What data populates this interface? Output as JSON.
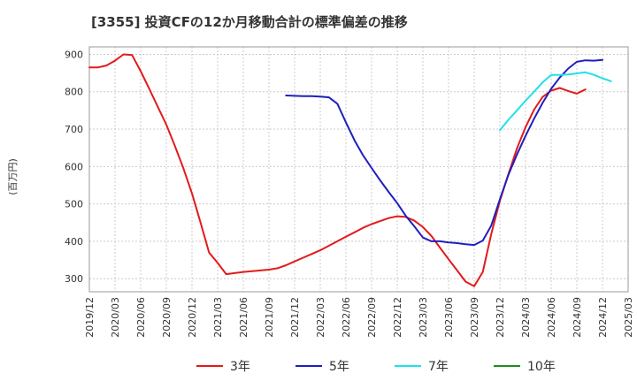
{
  "chart_data": {
    "type": "line",
    "title": "[3355]  投資CFの12か月移動合計の標準偏差の推移",
    "ylabel": "(百万円)",
    "xlabel": "",
    "ylim": [
      265,
      920
    ],
    "yticks": [
      300,
      400,
      500,
      600,
      700,
      800,
      900
    ],
    "xlim": [
      "2019-12",
      "2025-03"
    ],
    "xticks": [
      "2019/12",
      "2020/03",
      "2020/06",
      "2020/09",
      "2020/12",
      "2021/03",
      "2021/06",
      "2021/09",
      "2021/12",
      "2022/03",
      "2022/06",
      "2022/09",
      "2022/12",
      "2023/03",
      "2023/06",
      "2023/09",
      "2023/12",
      "2024/03",
      "2024/06",
      "2024/09",
      "2024/12",
      "2025/03"
    ],
    "grid": true,
    "legend_position": "bottom",
    "series": [
      {
        "name": "3年",
        "color": "#e31a1c",
        "points": [
          [
            "2019-12",
            865
          ],
          [
            "2020-01",
            865
          ],
          [
            "2020-02",
            870
          ],
          [
            "2020-03",
            883
          ],
          [
            "2020-04",
            900
          ],
          [
            "2020-05",
            898
          ],
          [
            "2020-06",
            855
          ],
          [
            "2020-07",
            808
          ],
          [
            "2020-08",
            760
          ],
          [
            "2020-09",
            712
          ],
          [
            "2020-10",
            655
          ],
          [
            "2020-11",
            595
          ],
          [
            "2020-12",
            528
          ],
          [
            "2021-01",
            450
          ],
          [
            "2021-02",
            370
          ],
          [
            "2021-03",
            342
          ],
          [
            "2021-04",
            312
          ],
          [
            "2021-05",
            315
          ],
          [
            "2021-06",
            318
          ],
          [
            "2021-07",
            320
          ],
          [
            "2021-08",
            322
          ],
          [
            "2021-09",
            324
          ],
          [
            "2021-10",
            328
          ],
          [
            "2021-11",
            336
          ],
          [
            "2021-12",
            346
          ],
          [
            "2022-01",
            356
          ],
          [
            "2022-02",
            366
          ],
          [
            "2022-03",
            376
          ],
          [
            "2022-04",
            388
          ],
          [
            "2022-05",
            400
          ],
          [
            "2022-06",
            412
          ],
          [
            "2022-07",
            424
          ],
          [
            "2022-08",
            436
          ],
          [
            "2022-09",
            446
          ],
          [
            "2022-10",
            454
          ],
          [
            "2022-11",
            462
          ],
          [
            "2022-12",
            467
          ],
          [
            "2023-01",
            465
          ],
          [
            "2023-02",
            455
          ],
          [
            "2023-03",
            438
          ],
          [
            "2023-04",
            414
          ],
          [
            "2023-05",
            383
          ],
          [
            "2023-06",
            352
          ],
          [
            "2023-07",
            322
          ],
          [
            "2023-08",
            292
          ],
          [
            "2023-09",
            280
          ],
          [
            "2023-10",
            318
          ],
          [
            "2023-11",
            420
          ],
          [
            "2023-12",
            508
          ],
          [
            "2024-01",
            580
          ],
          [
            "2024-02",
            648
          ],
          [
            "2024-03",
            705
          ],
          [
            "2024-04",
            752
          ],
          [
            "2024-05",
            786
          ],
          [
            "2024-06",
            803
          ],
          [
            "2024-07",
            810
          ],
          [
            "2024-08",
            802
          ],
          [
            "2024-09",
            795
          ],
          [
            "2024-10",
            806
          ]
        ]
      },
      {
        "name": "5年",
        "color": "#1f1fbf",
        "points": [
          [
            "2021-11",
            790
          ],
          [
            "2021-12",
            789
          ],
          [
            "2022-01",
            788
          ],
          [
            "2022-02",
            788
          ],
          [
            "2022-03",
            787
          ],
          [
            "2022-04",
            785
          ],
          [
            "2022-05",
            768
          ],
          [
            "2022-06",
            718
          ],
          [
            "2022-07",
            670
          ],
          [
            "2022-08",
            630
          ],
          [
            "2022-09",
            596
          ],
          [
            "2022-10",
            563
          ],
          [
            "2022-11",
            532
          ],
          [
            "2022-12",
            502
          ],
          [
            "2023-01",
            468
          ],
          [
            "2023-02",
            440
          ],
          [
            "2023-03",
            410
          ],
          [
            "2023-04",
            400
          ],
          [
            "2023-05",
            400
          ],
          [
            "2023-06",
            397
          ],
          [
            "2023-07",
            395
          ],
          [
            "2023-08",
            392
          ],
          [
            "2023-09",
            390
          ],
          [
            "2023-10",
            402
          ],
          [
            "2023-11",
            442
          ],
          [
            "2023-12",
            512
          ],
          [
            "2024-01",
            578
          ],
          [
            "2024-02",
            632
          ],
          [
            "2024-03",
            682
          ],
          [
            "2024-04",
            728
          ],
          [
            "2024-05",
            770
          ],
          [
            "2024-06",
            808
          ],
          [
            "2024-07",
            838
          ],
          [
            "2024-08",
            862
          ],
          [
            "2024-09",
            880
          ],
          [
            "2024-10",
            884
          ],
          [
            "2024-11",
            883
          ],
          [
            "2024-12",
            885
          ]
        ]
      },
      {
        "name": "7年",
        "color": "#22e0e8",
        "points": [
          [
            "2023-12",
            697
          ],
          [
            "2024-01",
            725
          ],
          [
            "2024-02",
            750
          ],
          [
            "2024-03",
            776
          ],
          [
            "2024-04",
            800
          ],
          [
            "2024-05",
            825
          ],
          [
            "2024-06",
            845
          ],
          [
            "2024-07",
            845
          ],
          [
            "2024-08",
            846
          ],
          [
            "2024-09",
            849
          ],
          [
            "2024-10",
            852
          ],
          [
            "2024-11",
            845
          ],
          [
            "2024-12",
            836
          ],
          [
            "2025-01",
            828
          ]
        ]
      },
      {
        "name": "10年",
        "color": "#228b22",
        "points": []
      }
    ]
  }
}
